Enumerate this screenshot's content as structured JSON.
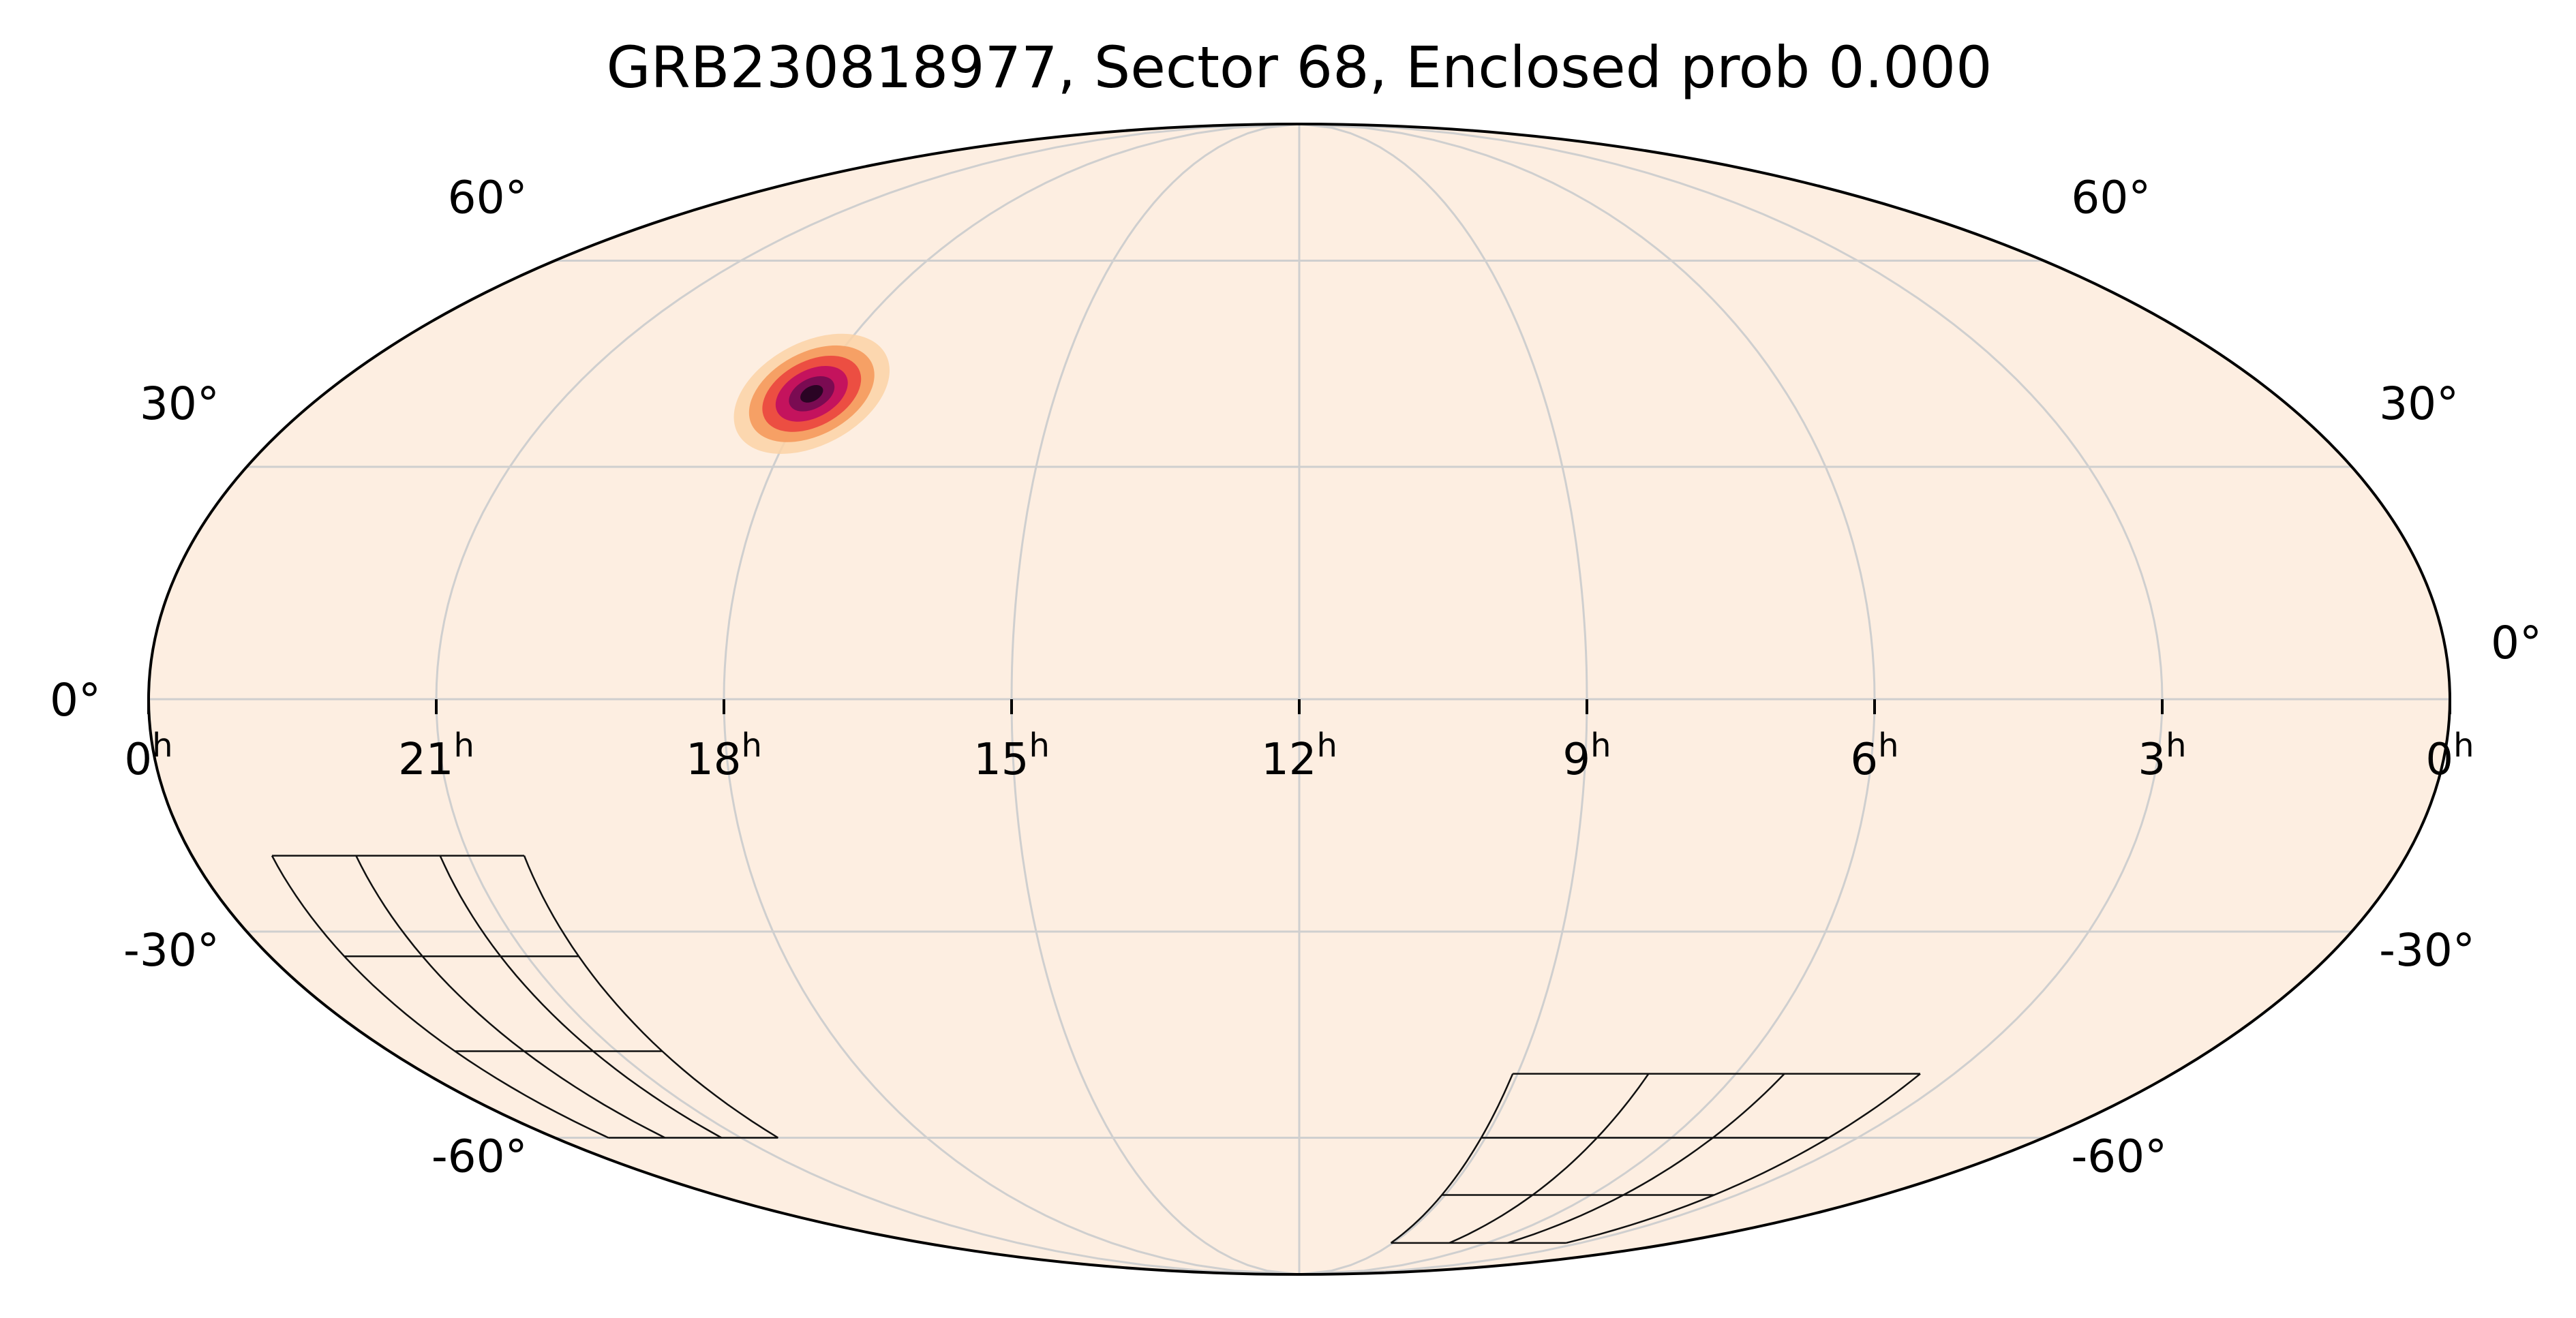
{
  "chart_data": {
    "type": "heatmap",
    "projection": "mollweide",
    "title": "GRB230818977, Sector 68, Enclosed prob 0.000",
    "grid": true,
    "colors": {
      "background": "#fdeee1",
      "grid": "#cfcfcf",
      "frame": "#000000",
      "footprint": "#111111",
      "heat": [
        "#fdeee1",
        "#fbd2a6",
        "#f59a5d",
        "#eb4a40",
        "#c4135d",
        "#7a0b52",
        "#2a0424"
      ]
    },
    "ra_ticks": [
      {
        "ra": 360,
        "label": "0",
        "sup": "h"
      },
      {
        "ra": 315,
        "label": "21",
        "sup": "h"
      },
      {
        "ra": 270,
        "label": "18",
        "sup": "h"
      },
      {
        "ra": 225,
        "label": "15",
        "sup": "h"
      },
      {
        "ra": 180,
        "label": "12",
        "sup": "h"
      },
      {
        "ra": 135,
        "label": "9",
        "sup": "h"
      },
      {
        "ra": 90,
        "label": "6",
        "sup": "h"
      },
      {
        "ra": 45,
        "label": "3",
        "sup": "h"
      },
      {
        "ra": 0,
        "label": "0",
        "sup": "h"
      }
    ],
    "dec_ticks": [
      {
        "dec": 60,
        "label": "60°"
      },
      {
        "dec": 30,
        "label": "30°"
      },
      {
        "dec": 0,
        "label": "0°"
      },
      {
        "dec": -30,
        "label": "-30°"
      },
      {
        "dec": -60,
        "label": "-60°"
      }
    ],
    "probability_peak": {
      "ra": 270,
      "dec": 40
    },
    "footprints": [
      {
        "ra_range": [
          306,
          347
        ],
        "dec_range": [
          -60,
          -20
        ]
      },
      {
        "ra_range": [
          52,
          136
        ],
        "dec_range": [
          -80,
          -50
        ]
      }
    ]
  }
}
